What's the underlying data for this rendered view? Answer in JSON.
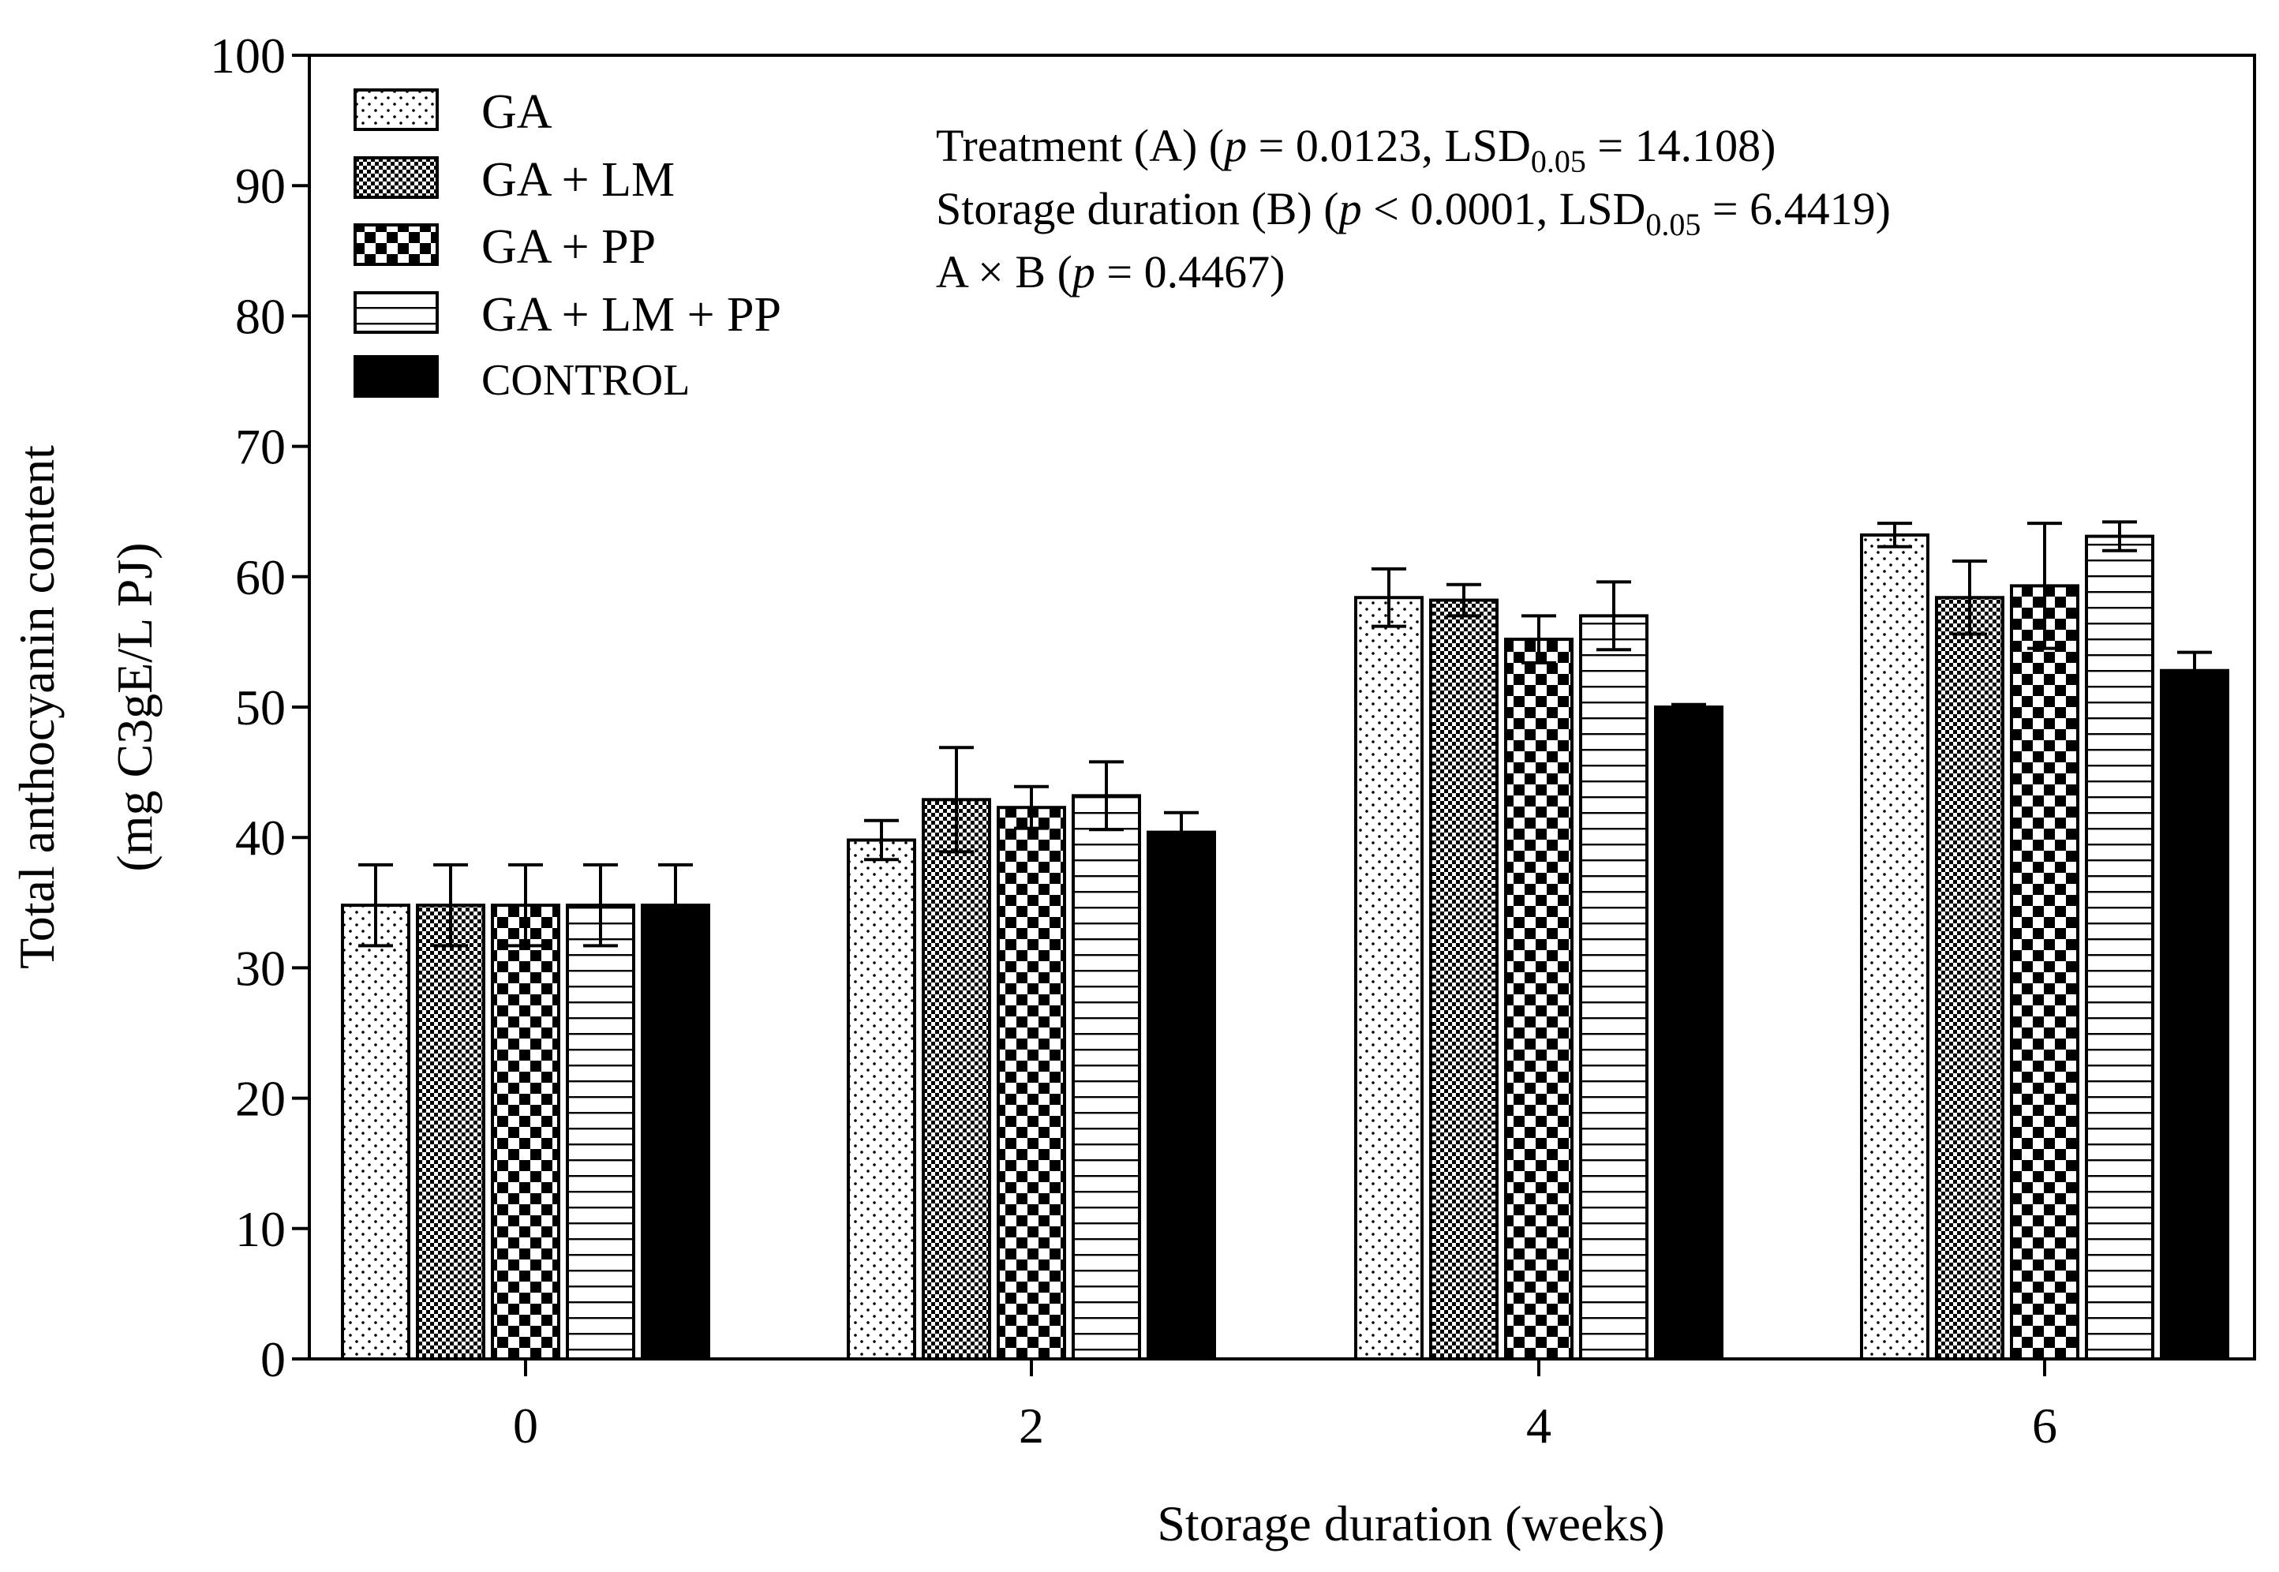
{
  "chart_data": {
    "type": "bar",
    "xlabel": "Storage duration (weeks)",
    "ylabel_line1": "Total anthocyanin content",
    "ylabel_line2": "(mg C3gE/L PJ)",
    "ylim": [
      0,
      100
    ],
    "yticks": [
      0,
      10,
      20,
      30,
      40,
      50,
      60,
      70,
      80,
      90,
      100
    ],
    "categories": [
      "0",
      "2",
      "4",
      "6"
    ],
    "legend_placement": "top-left",
    "grid": false,
    "series": [
      {
        "name": "GA",
        "pattern": "dots",
        "values": [
          34.8,
          39.8,
          58.4,
          63.2
        ],
        "errors": [
          3.1,
          1.5,
          2.2,
          0.9
        ]
      },
      {
        "name": "GA + LM",
        "pattern": "fine-checker",
        "values": [
          34.8,
          42.9,
          58.2,
          58.4
        ],
        "errors": [
          3.1,
          4.0,
          1.2,
          2.8
        ]
      },
      {
        "name": "GA + PP",
        "pattern": "checker",
        "values": [
          34.8,
          42.3,
          55.2,
          59.3
        ],
        "errors": [
          3.1,
          1.6,
          1.8,
          4.8
        ]
      },
      {
        "name": "GA + LM + PP",
        "pattern": "hlines",
        "values": [
          34.8,
          43.2,
          57.0,
          63.1
        ],
        "errors": [
          3.1,
          2.6,
          2.6,
          1.1
        ]
      },
      {
        "name": "CONTROL",
        "pattern": "solid",
        "values": [
          34.8,
          40.4,
          50.0,
          52.8
        ],
        "errors": [
          3.1,
          1.5,
          0.2,
          1.4
        ]
      }
    ],
    "annotation": {
      "line1_pre": "Treatment (A) (",
      "line1_p": "p",
      "line1_mid": " = 0.0123, LSD",
      "line1_sub": "0.05",
      "line1_post": " = 14.108)",
      "line2_pre": "Storage duration (B) (",
      "line2_p": "p",
      "line2_mid": " < 0.0001, LSD",
      "line2_sub": "0.05",
      "line2_post": " = 6.4419)",
      "line3_pre": "A × B (",
      "line3_p": "p",
      "line3_post": " = 0.4467)"
    }
  }
}
